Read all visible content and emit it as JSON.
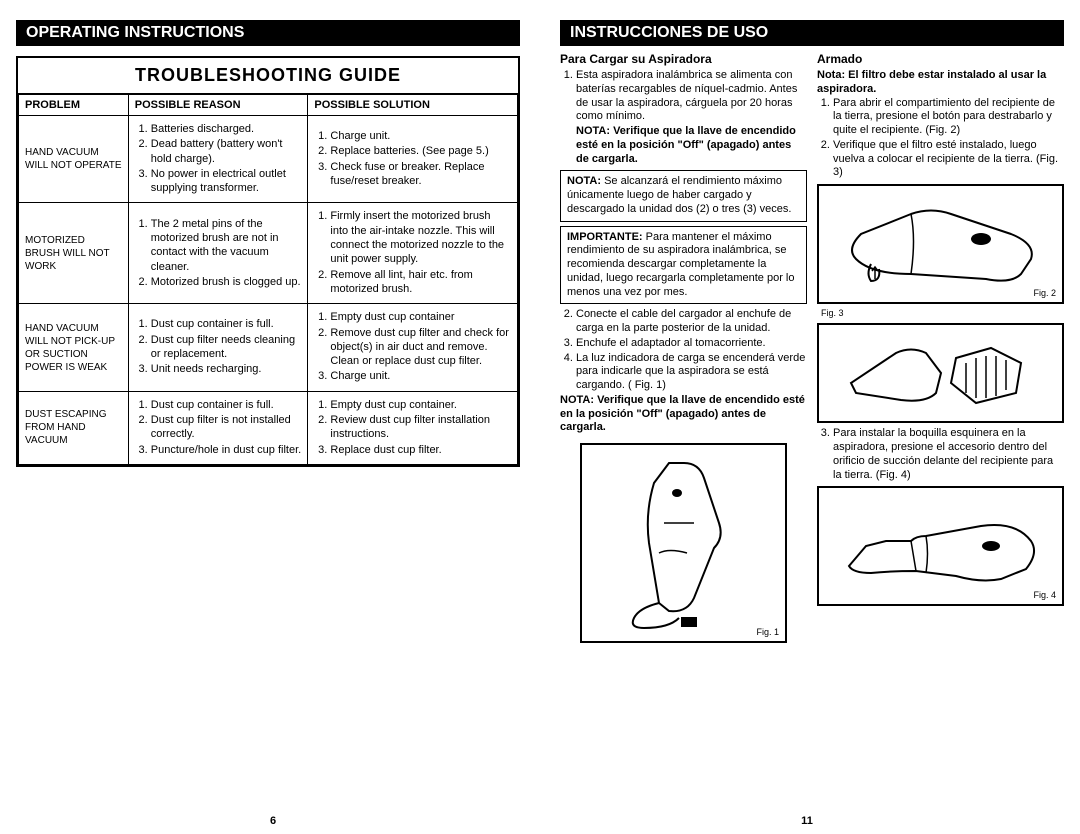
{
  "left": {
    "header": "OPERATING INSTRUCTIONS",
    "guide_title": "TROUBLESHOOTING GUIDE",
    "columns": {
      "c1": "PROBLEM",
      "c2": "POSSIBLE REASON",
      "c3": "POSSIBLE SOLUTION"
    },
    "rows": [
      {
        "problem": "HAND VACUUM WILL NOT OPERATE",
        "reasons": [
          "Batteries discharged.",
          "Dead battery (battery won't hold charge).",
          "No power in electrical outlet supplying transformer."
        ],
        "solutions": [
          "Charge unit.",
          "Replace batteries. (See page 5.)",
          "Check fuse or breaker. Replace fuse/reset breaker."
        ]
      },
      {
        "problem": "MOTORIZED BRUSH WILL NOT WORK",
        "reasons": [
          "The 2 metal pins of the motorized brush are not in contact with the vacuum cleaner.",
          "Motorized brush is clogged up."
        ],
        "solutions": [
          "Firmly insert the motorized brush into the air-intake nozzle. This will connect the motorized nozzle to the unit power supply.",
          "Remove all lint, hair etc. from motorized brush."
        ]
      },
      {
        "problem": "HAND VACUUM WILL NOT PICK-UP OR SUCTION POWER IS WEAK",
        "reasons": [
          "Dust cup container is full.",
          "Dust cup filter needs cleaning or replacement.",
          "Unit needs recharging."
        ],
        "solutions": [
          "Empty dust cup container",
          "Remove dust cup filter and check for object(s) in air duct and remove. Clean or replace dust cup filter.",
          "Charge unit."
        ]
      },
      {
        "problem": "DUST ESCAPING FROM HAND VACUUM",
        "reasons": [
          "Dust cup container is full.",
          "Dust cup filter is not installed correctly.",
          "Puncture/hole in dust cup filter."
        ],
        "solutions": [
          "Empty dust cup container.",
          "Review dust cup filter installation instructions.",
          "Replace dust cup filter."
        ]
      }
    ],
    "page_num": "6"
  },
  "right": {
    "header": "INSTRUCCIONES DE USO",
    "col1": {
      "title": "Para Cargar su Aspiradora",
      "step1": "Esta aspiradora inalámbrica se alimenta con baterías recargables de níquel-cadmio. Antes de usar la aspiradora, cárguela por 20 horas como mínimo.",
      "nota1": "NOTA: Verifique que la llave de encendido esté en la posición \"Off\" (apagado) antes de cargarla.",
      "box1_lead": "NOTA:",
      "box1": "Se alcanzará el rendimiento máximo únicamente luego de haber cargado y descargado la unidad dos (2) o tres (3) veces.",
      "box2_lead": "IMPORTANTE:",
      "box2": "Para mantener el máximo rendimiento de su aspiradora inalámbrica, se recomienda descargar completamente la unidad, luego recargarla completamente por lo menos una vez por mes.",
      "steps_rest": [
        "Conecte el cable del cargador al enchufe de carga en la parte posterior de la unidad.",
        "Enchufe el adaptador al tomacorriente.",
        "La luz indicadora de carga se encenderá verde para indicarle que la aspiradora se está cargando. ( Fig. 1)"
      ],
      "nota2": "NOTA: Verifique que la llave de encendido esté en la posición \"Off\" (apagado) antes de cargarla.",
      "fig1_label": "Fig. 1"
    },
    "col2": {
      "title": "Armado",
      "subtitle": "Nota: El filtro debe estar instalado al usar la aspiradora.",
      "steps_a": [
        "Para abrir el compartimiento del recipiente de la tierra, presione el botón para destrabarlo y quite el recipiente. (Fig. 2)",
        "Verifique que el filtro esté instalado, luego vuelva a colocar el recipiente de la tierra. (Fig. 3)"
      ],
      "fig2_label": "Fig. 2",
      "fig3_label": "Fig. 3",
      "step3": "Para instalar la boquilla esquinera en la aspiradora, presione el accesorio dentro del orificio de succión delante del recipiente para la tierra. (Fig. 4)",
      "fig4_label": "Fig. 4"
    },
    "page_num": "11"
  }
}
